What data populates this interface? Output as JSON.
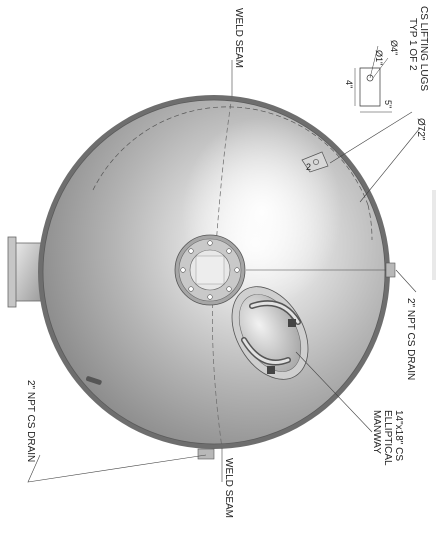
{
  "labels": {
    "lugs_typ": "TYP 1 OF 2",
    "lugs_name": "CS LIFTING LUGS",
    "dia_1": "Ø1\"",
    "dia_4": "Ø4\"",
    "dim_4": "4\"",
    "dim_5": "5\"",
    "weld_seam_top": "WELD SEAM",
    "weld_seam_bottom": "WELD SEAM",
    "dia_72": "Ø72\"",
    "drain_right": "2\" NPT CS DRAIN",
    "drain_left": "2\" NPT CS DRAIN",
    "manway_line1": "14\"x18\" CS",
    "manway_line2": "ELLIPTICAL",
    "manway_line3": "MANWAY",
    "lug_mark": "2"
  },
  "colors": {
    "shell_light": "#f4f4f4",
    "shell_mid": "#b8b8b8",
    "shell_dark": "#7c7c7c",
    "outline": "#555555",
    "faint_watermark": "#e6e6e6"
  }
}
